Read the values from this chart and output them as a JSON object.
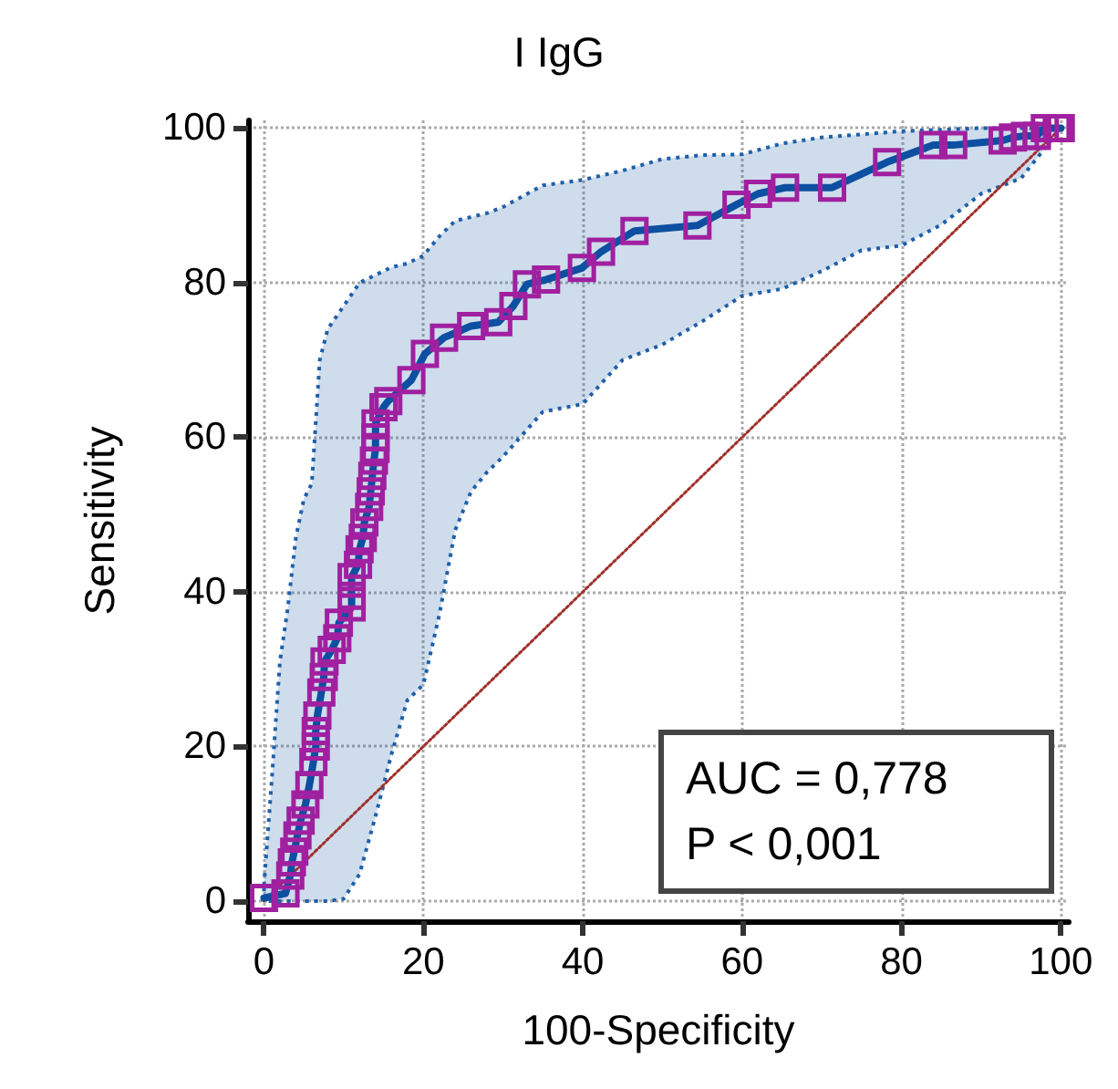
{
  "chart_data": {
    "type": "line",
    "title": "I IgG",
    "xlabel": "100-Specificity",
    "ylabel": "Sensitivity",
    "xlim": [
      -2,
      101
    ],
    "ylim": [
      -2.6,
      101
    ],
    "xticks": [
      0,
      20,
      40,
      60,
      80,
      100
    ],
    "yticks": [
      0,
      20,
      40,
      60,
      80,
      100
    ],
    "grid": true,
    "annotations": [
      "AUC = 0,778",
      "P < 0,001"
    ],
    "series": [
      {
        "color": "#1f5fa8",
        "line_style": "dotted",
        "values": [
          null,
          null,
          null,
          null,
          null,
          null,
          null,
          null,
          null,
          null,
          null,
          null,
          null,
          null,
          null,
          null,
          null,
          null,
          null,
          null,
          null,
          null,
          null,
          null,
          null,
          null,
          null,
          null,
          null,
          null,
          null,
          null,
          null,
          null
        ],
        "x": [
          0,
          1,
          2,
          3,
          4,
          5,
          6,
          7,
          8,
          10,
          12,
          14,
          16,
          18,
          20,
          22,
          24,
          26,
          28,
          30,
          35,
          40,
          45,
          50,
          55,
          60,
          65,
          70,
          75,
          80,
          85,
          90,
          95,
          100
        ],
        "upper": [
          2,
          16,
          31,
          38,
          47,
          52,
          54,
          70,
          74,
          77,
          80,
          81,
          82,
          82.5,
          83.5,
          86,
          88,
          88.5,
          89,
          89.8,
          92.6,
          93.3,
          94.5,
          96,
          96.5,
          96.6,
          98,
          98.8,
          99.2,
          99.6,
          99.8,
          100,
          100,
          100
        ],
        "lower": [
          0,
          0,
          0,
          0,
          0,
          0,
          0,
          0,
          0,
          0.3,
          3.5,
          11,
          19,
          26,
          28,
          37,
          48,
          53,
          55.5,
          57.5,
          63.3,
          64.3,
          70,
          72,
          75,
          78.3,
          79.2,
          81.5,
          84.2,
          84.8,
          87.5,
          91.5,
          93.5,
          100
        ]
      },
      {
        "color": "#a0302a",
        "line_style": "dotted",
        "marker": "none",
        "x": [
          0,
          100
        ],
        "values": [
          0,
          100
        ]
      },
      {
        "color": "#0d4fa0",
        "colors": [
          "#a020a0",
          "#a020a0",
          "#a020a0",
          "#a020a0",
          "#a020a0",
          "#a020a0",
          "#a020a0",
          "#a020a0",
          "#a020a0",
          "#a020a0",
          "#a020a0",
          "#a020a0",
          "#a020a0",
          "#a020a0",
          "#a020a0",
          "#a020a0",
          "#a020a0",
          "#a020a0",
          "#a020a0",
          "#a020a0",
          "#a020a0",
          "#a020a0",
          "#a020a0",
          "#a020a0",
          "#a020a0",
          "#a020a0",
          "#a020a0",
          "#a020a0",
          "#a020a0",
          "#a020a0",
          "#a020a0",
          "#a020a0",
          "#a020a0",
          "#a020a0",
          "#a020a0",
          "#a020a0",
          "#a020a0",
          "#a020a0",
          "#a020a0",
          "#a020a0",
          "#a020a0",
          "#a020a0",
          "#a020a0",
          "#a020a0",
          "#a020a0",
          "#a020a0",
          "#a020a0",
          "#a020a0",
          "#a020a0",
          "#a020a0",
          "#a020a0",
          "#a020a0",
          "#a020a0",
          "#a020a0",
          "#a020a0",
          "#a020a0",
          "#a020a0",
          "#a020a0",
          "#a020a0",
          "#a020a0",
          "#a020a0"
        ],
        "line_style": "solid",
        "marker": "square",
        "x": [
          0,
          2.7,
          3.3,
          3.5,
          3.8,
          4.2,
          4.6,
          5.2,
          5.7,
          6.2,
          6.5,
          6.5,
          6.7,
          7.2,
          7.5,
          7.6,
          8.5,
          9.2,
          9.4,
          11,
          11,
          11,
          11.8,
          12,
          12.4,
          12.6,
          13.2,
          13.4,
          13.6,
          13.8,
          14,
          14,
          14,
          15,
          15.6,
          18.5,
          20.2,
          22.6,
          26,
          29.4,
          31.3,
          33,
          35.4,
          39.9,
          42.3,
          46.5,
          54.4,
          59.3,
          62,
          65.4,
          71.3,
          78.2,
          84,
          86.5,
          92.7,
          94,
          95.5,
          97,
          98,
          99.5,
          100
        ],
        "values": [
          0.4,
          1,
          3.3,
          5,
          6.4,
          8.5,
          10.4,
          12.5,
          15,
          18,
          20,
          22,
          24,
          27,
          29,
          31,
          32.5,
          34,
          36,
          38,
          39.5,
          41.9,
          43.5,
          45.5,
          47,
          49,
          51,
          53,
          55,
          57,
          58.5,
          60,
          61.8,
          63.9,
          64.7,
          67.4,
          70.8,
          72.9,
          74.4,
          74.9,
          77,
          79.8,
          80.4,
          81.9,
          84,
          86.7,
          87.4,
          90.1,
          91.5,
          92.3,
          92.3,
          95.6,
          97.8,
          97.8,
          98.4,
          98.8,
          99,
          99,
          100,
          100,
          100
        ]
      }
    ]
  }
}
